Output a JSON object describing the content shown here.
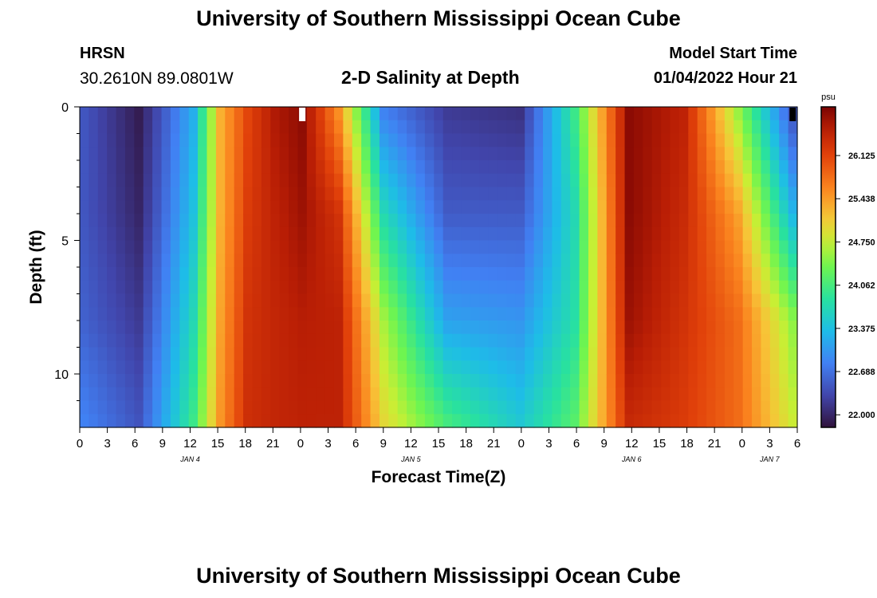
{
  "header": {
    "title": "University of Southern Mississippi Ocean Cube",
    "station": "HRSN",
    "coordinates": "30.2610N  89.0801W",
    "plot_title": "2-D Salinity at Depth",
    "start_label": "Model Start Time",
    "start_value": "01/04/2022 Hour 21"
  },
  "footer": {
    "title": "University of Southern Mississippi Ocean Cube"
  },
  "chart_data": {
    "type": "heatmap",
    "title": "2-D Salinity at Depth",
    "xlabel": "Forecast Time(Z)",
    "ylabel": "Depth (ft)",
    "x_unit": "hour offset from Jan 4 00Z",
    "x_range": [
      0,
      78
    ],
    "y_range": [
      0,
      12
    ],
    "y_inverted": true,
    "x_ticks": [
      0,
      3,
      6,
      9,
      12,
      15,
      18,
      21,
      24,
      27,
      30,
      33,
      36,
      39,
      42,
      45,
      48,
      51,
      54,
      57,
      60,
      63,
      66,
      69,
      72,
      75,
      78
    ],
    "x_tick_labels": [
      "0",
      "3",
      "6",
      "9",
      "12",
      "15",
      "18",
      "21",
      "0",
      "3",
      "6",
      "9",
      "12",
      "15",
      "18",
      "21",
      "0",
      "3",
      "6",
      "9",
      "12",
      "15",
      "18",
      "21",
      "0",
      "3",
      "6"
    ],
    "date_labels": [
      {
        "label": "JAN 4",
        "hour": 12
      },
      {
        "label": "JAN 5",
        "hour": 36
      },
      {
        "label": "JAN 6",
        "hour": 60
      },
      {
        "label": "JAN 7",
        "hour": 75
      }
    ],
    "y_major_ticks": [
      0,
      5,
      10
    ],
    "y_minor_ticks": [
      1,
      2,
      3,
      4,
      6,
      7,
      8,
      9,
      11
    ],
    "colorbar": {
      "unit": "psu",
      "min": 21.8,
      "max": 26.9,
      "ticks": [
        "22.000",
        "22.688",
        "23.375",
        "24.062",
        "24.750",
        "25.438",
        "26.125"
      ]
    },
    "x": [
      0,
      6,
      12,
      15,
      18,
      21,
      24,
      28,
      33,
      40,
      48,
      54,
      60,
      66,
      72,
      78
    ],
    "depths": [
      0,
      4,
      8,
      12
    ],
    "values": [
      [
        22.45,
        22.45,
        22.55,
        22.85
      ],
      [
        21.9,
        22.0,
        22.2,
        22.45
      ],
      [
        23.2,
        23.4,
        23.7,
        24.0
      ],
      [
        25.3,
        25.3,
        25.4,
        25.5
      ],
      [
        26.1,
        26.2,
        26.3,
        26.35
      ],
      [
        26.6,
        26.5,
        26.45,
        26.45
      ],
      [
        26.8,
        26.7,
        26.55,
        26.5
      ],
      [
        25.5,
        26.3,
        26.5,
        26.5
      ],
      [
        22.8,
        23.7,
        24.6,
        25.0
      ],
      [
        22.2,
        22.5,
        23.1,
        24.1
      ],
      [
        22.1,
        22.5,
        23.0,
        23.5
      ],
      [
        24.0,
        23.7,
        23.8,
        24.2
      ],
      [
        26.8,
        26.8,
        26.7,
        26.4
      ],
      [
        26.5,
        26.4,
        26.3,
        26.2
      ],
      [
        24.5,
        25.4,
        25.8,
        25.8
      ],
      [
        22.4,
        23.3,
        24.5,
        24.8
      ]
    ],
    "missing_cells": [
      {
        "hour": 24,
        "depth": 0,
        "color": "#ffffff"
      },
      {
        "hour": 78,
        "depth": 0,
        "color": "#000000"
      }
    ]
  }
}
